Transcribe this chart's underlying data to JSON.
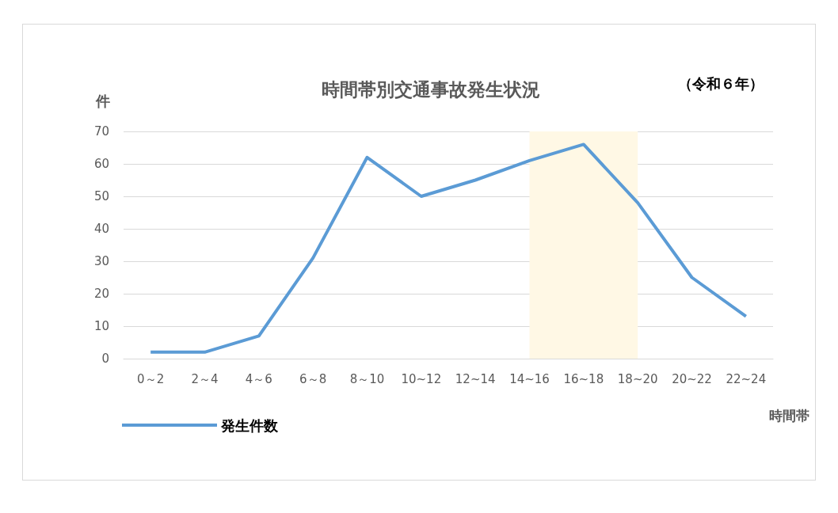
{
  "chart_data": {
    "type": "line",
    "title": "時間帯別交通事故発生状況",
    "xlabel": "時間帯",
    "ylabel": "件",
    "annotations": [
      "（令和６年）"
    ],
    "categories": [
      "0～2",
      "2～4",
      "4～6",
      "6～8",
      "8～10",
      "10~12",
      "12~14",
      "14~16",
      "16~18",
      "18~20",
      "20~22",
      "22~24"
    ],
    "series": [
      {
        "name": "発生件数",
        "color": "#5b9bd5",
        "values": [
          2,
          2,
          7,
          31,
          62,
          50,
          55,
          61,
          66,
          48,
          25,
          13
        ]
      }
    ],
    "ylim": [
      0,
      70
    ],
    "yticks": [
      0,
      10,
      20,
      30,
      40,
      50,
      60,
      70
    ],
    "grid": "y",
    "legend": "bottom left",
    "marker": "none",
    "line_style": "solid",
    "bands": [
      {
        "axis": "x",
        "from": "14~16",
        "to": "18~20",
        "color": "#fff8e5"
      }
    ]
  }
}
